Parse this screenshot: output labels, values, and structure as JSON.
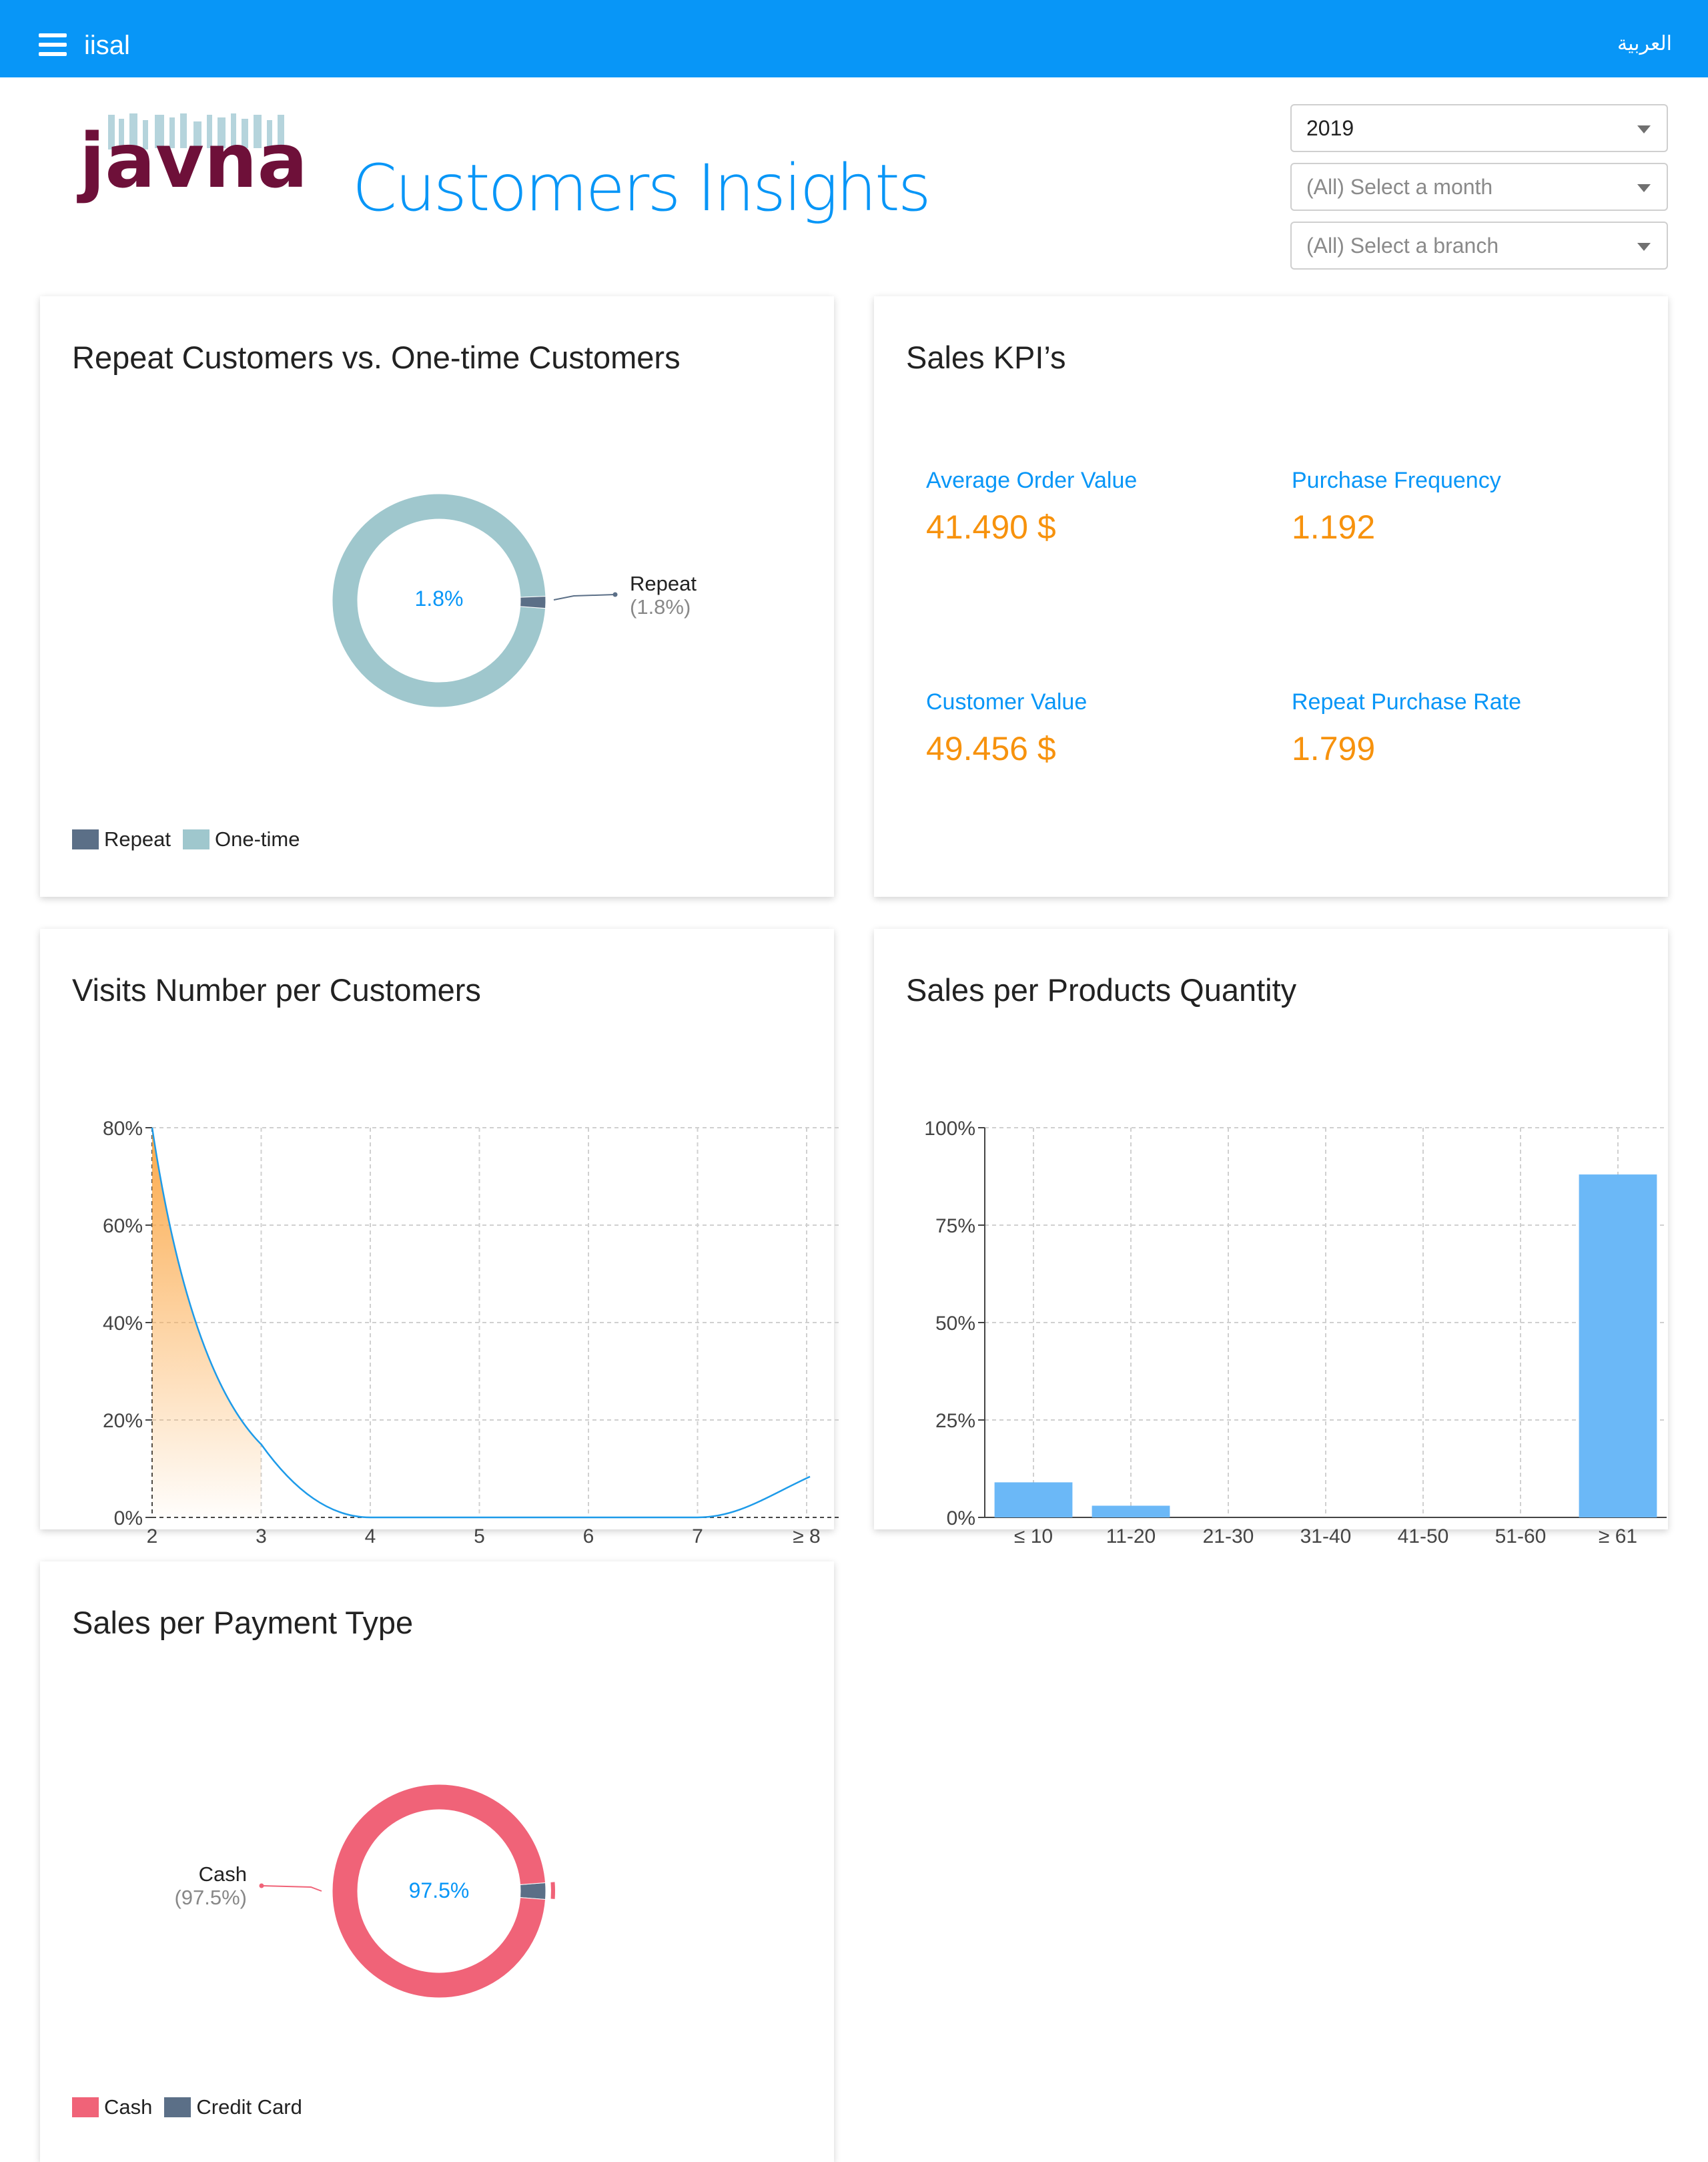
{
  "topbar": {
    "app_name": "iisal",
    "language_link": "العربية",
    "bg_color": "#0896f7"
  },
  "header": {
    "logo_text": "javna",
    "title": "Customers Insights",
    "filters": {
      "year": "2019",
      "month_placeholder": "(All) Select a month",
      "branch_placeholder": "(All) Select a branch"
    }
  },
  "cards": {
    "repeat": {
      "title": "Repeat Customers vs. One-time Customers",
      "center_label": "1.8%",
      "callout_name": "Repeat",
      "callout_pct": "(1.8%)",
      "legend": [
        {
          "label": "Repeat",
          "color": "#5b6f87"
        },
        {
          "label": "One-time",
          "color": "#9fc7cd"
        }
      ]
    },
    "kpi": {
      "title": "Sales KPI’s",
      "items": [
        {
          "label": "Average Order Value",
          "value": "41.490 $"
        },
        {
          "label": "Purchase Frequency",
          "value": "1.192"
        },
        {
          "label": "Customer Value",
          "value": "49.456 $"
        },
        {
          "label": "Repeat Purchase Rate",
          "value": "1.799"
        }
      ]
    },
    "visits": {
      "title": "Visits Number per Customers"
    },
    "products": {
      "title": "Sales per Products Quantity"
    },
    "payment": {
      "title": "Sales per Payment Type",
      "center_label": "97.5%",
      "callout_name": "Cash",
      "callout_pct": "(97.5%)",
      "legend": [
        {
          "label": "Cash",
          "color": "#f06378"
        },
        {
          "label": "Credit Card",
          "color": "#5b6f87"
        }
      ]
    }
  },
  "chart_data": [
    {
      "type": "pie",
      "title": "Repeat Customers vs. One-time Customers",
      "categories": [
        "Repeat",
        "One-time"
      ],
      "values": [
        1.8,
        98.2
      ],
      "unit": "%",
      "colors": [
        "#5b6f87",
        "#9fc7cd"
      ],
      "legend_placement": "bottom-left"
    },
    {
      "type": "area",
      "title": "Visits Number per Customers",
      "categories": [
        "2",
        "3",
        "4",
        "5",
        "6",
        "7",
        "≥ 8"
      ],
      "values": [
        80,
        15,
        0,
        0,
        0,
        0,
        7
      ],
      "ylim": [
        0,
        80
      ],
      "yticks": [
        "0%",
        "20%",
        "40%",
        "60%",
        "80%"
      ],
      "grid": true,
      "color": "#1e9be9",
      "fill_color": "#fba94a"
    },
    {
      "type": "bar",
      "title": "Sales per Products Quantity",
      "categories": [
        "≤ 10",
        "11-20",
        "21-30",
        "31-40",
        "41-50",
        "51-60",
        "≥ 61"
      ],
      "values": [
        9,
        3,
        0,
        0,
        0,
        0,
        88
      ],
      "ylim": [
        0,
        100
      ],
      "yticks": [
        "0%",
        "25%",
        "50%",
        "75%",
        "100%"
      ],
      "grid": true,
      "color": "#6bb8f7"
    },
    {
      "type": "pie",
      "title": "Sales per Payment Type",
      "categories": [
        "Cash",
        "Credit Card"
      ],
      "values": [
        97.5,
        2.5
      ],
      "unit": "%",
      "colors": [
        "#f06378",
        "#5b6f87"
      ],
      "legend_placement": "bottom-left"
    }
  ]
}
